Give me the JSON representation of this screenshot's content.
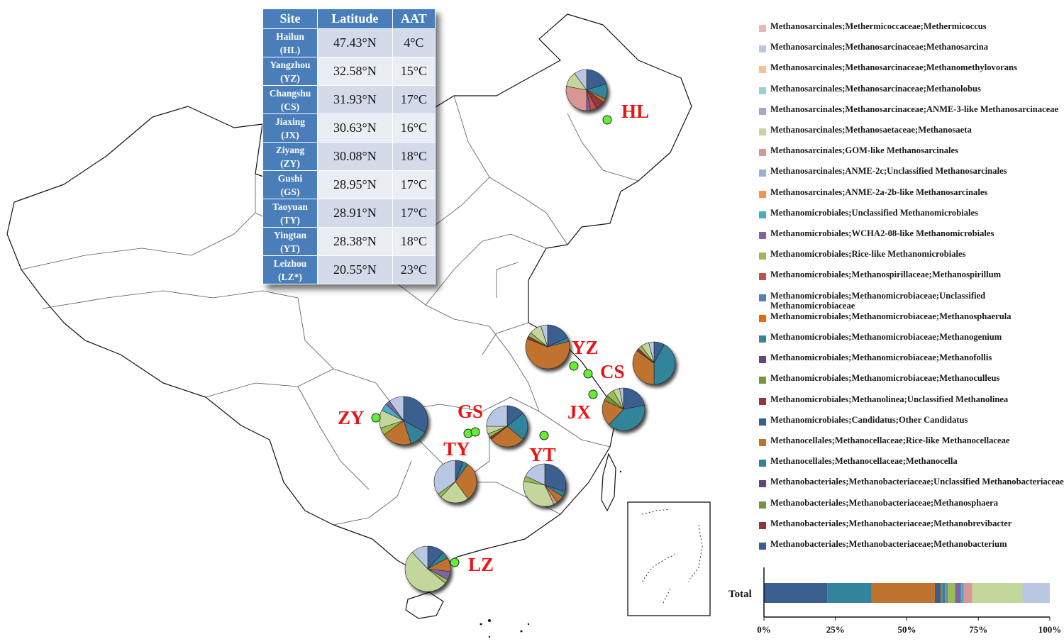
{
  "table": {
    "headers": [
      "Site",
      "Latitude",
      "AAT"
    ],
    "rows": [
      {
        "name": "Hailun",
        "code": "(HL)",
        "lat": "47.43°N",
        "aat": "4°C"
      },
      {
        "name": "Yangzhou",
        "code": "(YZ)",
        "lat": "32.58°N",
        "aat": "15°C"
      },
      {
        "name": "Changshu",
        "code": "(CS)",
        "lat": "31.93°N",
        "aat": "17°C"
      },
      {
        "name": "Jiaxing",
        "code": "(JX)",
        "lat": "30.63°N",
        "aat": "16°C"
      },
      {
        "name": "Ziyang",
        "code": "(ZY)",
        "lat": "30.08°N",
        "aat": "18°C"
      },
      {
        "name": "Gushi",
        "code": "(GS)",
        "lat": "28.95°N",
        "aat": "17°C"
      },
      {
        "name": "Taoyuan",
        "code": "(TY)",
        "lat": "28.91°N",
        "aat": "17°C"
      },
      {
        "name": "Yingtan",
        "code": "(YT)",
        "lat": "28.38°N",
        "aat": "18°C"
      },
      {
        "name": "Leizhou",
        "code": "(LZ*)",
        "lat": "20.55°N",
        "aat": "23°C"
      }
    ]
  },
  "site_labels": [
    "HL",
    "YZ",
    "CS",
    "JX",
    "ZY",
    "GS",
    "TY",
    "YT",
    "LZ"
  ],
  "legend": [
    {
      "label": "Methanosarcinales;Methermicoccaceae;Methermicoccus",
      "color": "#e6b9b8"
    },
    {
      "label": "Methanosarcinales;Methanosarcinaceae;Methanosarcina",
      "color": "#b9c7e3"
    },
    {
      "label": "Methanosarcinales;Methanosarcinaceae;Methanomethylovorans",
      "color": "#fabf8f"
    },
    {
      "label": "Methanosarcinales;Methanosarcinaceae;Methanolobus",
      "color": "#9dcfdb"
    },
    {
      "label": "Methanosarcinales;Methanosarcinaceae;ANME-3-like Methanosarcinaceae",
      "color": "#b3a2c7"
    },
    {
      "label": "Methanosarcinales;Methanosaetaceae;Methanosaeta",
      "color": "#c3d69b"
    },
    {
      "label": "Methanosarcinales;GOM-like Methanosarcinales",
      "color": "#d99694"
    },
    {
      "label": "Methanosarcinales;ANME-2c;Unclassified Methanosarcinales",
      "color": "#95b3d7"
    },
    {
      "label": "Methanosarcinales;ANME-2a-2b-like Methanosarcinales",
      "color": "#f79646"
    },
    {
      "label": "Methanomicrobiales;Unclassified Methanomicrobiales",
      "color": "#4bacc6"
    },
    {
      "label": "Methanomicrobiales;WCHA2-08-like Methanomicrobiales",
      "color": "#8064a2"
    },
    {
      "label": "Methanomicrobiales;Rice-like Methanomicrobiales",
      "color": "#9bbb59"
    },
    {
      "label": "Methanomicrobiales;Methanospirillaceae;Methanospirillum",
      "color": "#c0504d"
    },
    {
      "label": "Methanomicrobiales;Methanomicrobiaceae;Unclassified Methanomicrobiaceae",
      "color": "#4f81bd"
    },
    {
      "label": "Methanomicrobiales;Methanomicrobiaceae;Methanosphaerula",
      "color": "#e46c0a"
    },
    {
      "label": "Methanomicrobiales;Methanomicrobiaceae;Methanogenium",
      "color": "#31859c"
    },
    {
      "label": "Methanomicrobiales;Methanomicrobiaceae;Methanofollis",
      "color": "#5f497a"
    },
    {
      "label": "Methanomicrobiales;Methanomicrobiaceae;Methanoculleus",
      "color": "#77933c"
    },
    {
      "label": "Methanomicrobiales;Methanolinea;Unclassified Methanolinea",
      "color": "#953735"
    },
    {
      "label": "Methanomicrobiales;Candidatus;Other Candidatus",
      "color": "#376092"
    },
    {
      "label": "Methanocellales;Methanocellaceae;Rice-like Methanocellaceae",
      "color": "#c0732f"
    },
    {
      "label": "Methanocellales;Methanocellaceae;Methanocella",
      "color": "#31849b"
    },
    {
      "label": "Methanobacteriales;Methanobacteriaceae;Unclassified Methanobacteriaceae",
      "color": "#60497a"
    },
    {
      "label": "Methanobacteriales;Methanobacteriaceae;Methanosphaera",
      "color": "#76923c"
    },
    {
      "label": "Methanobacteriales;Methanobacteriaceae;Methanobrevibacter",
      "color": "#943634"
    },
    {
      "label": "Methanobacteriales;Methanobacteriaceae;Methanobacterium",
      "color": "#3a5f8f"
    }
  ],
  "total_bar": {
    "label": "Total",
    "ticks": [
      "0%",
      "25%",
      "50%",
      "75%",
      "100%"
    ],
    "segments": [
      {
        "taxon": "Methanobacterium",
        "color": "#3a5f8f",
        "value": 22
      },
      {
        "taxon": "Methanocella",
        "color": "#31849b",
        "value": 15.5
      },
      {
        "taxon": "Rice-like Methanocellaceae",
        "color": "#c0732f",
        "value": 22
      },
      {
        "taxon": "Other Candidatus",
        "color": "#376092",
        "value": 1.5
      },
      {
        "taxon": "Unclassified Methanolinea",
        "color": "#953735",
        "value": 0.5
      },
      {
        "taxon": "Methanoculleus",
        "color": "#77933c",
        "value": 0.5
      },
      {
        "taxon": "Methanogenium",
        "color": "#31859c",
        "value": 1
      },
      {
        "taxon": "Methanosphaerula",
        "color": "#e46c0a",
        "value": 0.5
      },
      {
        "taxon": "Unclassified Methanomicrobiaceae",
        "color": "#4f81bd",
        "value": 0.5
      },
      {
        "taxon": "Rice-like Methanomicrobiales",
        "color": "#9bbb59",
        "value": 2.5
      },
      {
        "taxon": "WCHA2-08-like Methanomicrobiales",
        "color": "#8064a2",
        "value": 2
      },
      {
        "taxon": "Unclassified Methanomicrobiales",
        "color": "#4bacc6",
        "value": 1
      },
      {
        "taxon": "GOM-like Methanosarcinales",
        "color": "#d99694",
        "value": 3
      },
      {
        "taxon": "Methanosaeta",
        "color": "#c3d69b",
        "value": 17.5
      },
      {
        "taxon": "Methanosarcina",
        "color": "#b9c7e3",
        "value": 9.5
      }
    ]
  },
  "pies": [
    {
      "site": "HL",
      "slices": [
        {
          "color": "#3a5f8f",
          "value": 20
        },
        {
          "color": "#31849b",
          "value": 12
        },
        {
          "color": "#c0732f",
          "value": 3
        },
        {
          "color": "#953735",
          "value": 7
        },
        {
          "color": "#c0504d",
          "value": 5
        },
        {
          "color": "#8064a2",
          "value": 3
        },
        {
          "color": "#d99694",
          "value": 28
        },
        {
          "color": "#c3d69b",
          "value": 12
        },
        {
          "color": "#b9c7e3",
          "value": 10
        }
      ]
    },
    {
      "site": "YZ",
      "slices": [
        {
          "color": "#3a5f8f",
          "value": 18
        },
        {
          "color": "#31849b",
          "value": 3
        },
        {
          "color": "#c0732f",
          "value": 60
        },
        {
          "color": "#953735",
          "value": 2
        },
        {
          "color": "#9bbb59",
          "value": 3
        },
        {
          "color": "#c3d69b",
          "value": 9
        },
        {
          "color": "#b9c7e3",
          "value": 5
        }
      ]
    },
    {
      "site": "CS",
      "slices": [
        {
          "color": "#3a5f8f",
          "value": 8
        },
        {
          "color": "#31849b",
          "value": 42
        },
        {
          "color": "#c0732f",
          "value": 35
        },
        {
          "color": "#953735",
          "value": 2
        },
        {
          "color": "#9bbb59",
          "value": 3
        },
        {
          "color": "#c3d69b",
          "value": 6
        },
        {
          "color": "#b9c7e3",
          "value": 4
        }
      ]
    },
    {
      "site": "JX",
      "slices": [
        {
          "color": "#3a5f8f",
          "value": 22
        },
        {
          "color": "#31849b",
          "value": 40
        },
        {
          "color": "#c0732f",
          "value": 20
        },
        {
          "color": "#77933c",
          "value": 4
        },
        {
          "color": "#9bbb59",
          "value": 6
        },
        {
          "color": "#c3d69b",
          "value": 5
        },
        {
          "color": "#b9c7e3",
          "value": 3
        }
      ]
    },
    {
      "site": "ZY",
      "slices": [
        {
          "color": "#3a5f8f",
          "value": 33
        },
        {
          "color": "#31849b",
          "value": 12
        },
        {
          "color": "#c0732f",
          "value": 20
        },
        {
          "color": "#9bbb59",
          "value": 5
        },
        {
          "color": "#c3d69b",
          "value": 12
        },
        {
          "color": "#4bacc6",
          "value": 5
        },
        {
          "color": "#8064a2",
          "value": 3
        },
        {
          "color": "#b9c7e3",
          "value": 10
        }
      ]
    },
    {
      "site": "GS",
      "slices": [
        {
          "color": "#3a5f8f",
          "value": 14
        },
        {
          "color": "#31849b",
          "value": 22
        },
        {
          "color": "#c0732f",
          "value": 28
        },
        {
          "color": "#953735",
          "value": 2
        },
        {
          "color": "#9bbb59",
          "value": 3
        },
        {
          "color": "#c3d69b",
          "value": 6
        },
        {
          "color": "#b9c7e3",
          "value": 25
        }
      ]
    },
    {
      "site": "TY",
      "slices": [
        {
          "color": "#3a5f8f",
          "value": 6
        },
        {
          "color": "#31849b",
          "value": 4
        },
        {
          "color": "#c0732f",
          "value": 30
        },
        {
          "color": "#c3d69b",
          "value": 22
        },
        {
          "color": "#9bbb59",
          "value": 3
        },
        {
          "color": "#b9c7e3",
          "value": 35
        }
      ]
    },
    {
      "site": "YT",
      "slices": [
        {
          "color": "#3a5f8f",
          "value": 30
        },
        {
          "color": "#31849b",
          "value": 4
        },
        {
          "color": "#c0732f",
          "value": 6
        },
        {
          "color": "#d99694",
          "value": 3
        },
        {
          "color": "#c3d69b",
          "value": 35
        },
        {
          "color": "#9bbb59",
          "value": 4
        },
        {
          "color": "#b9c7e3",
          "value": 18
        }
      ]
    },
    {
      "site": "LZ",
      "slices": [
        {
          "color": "#3a5f8f",
          "value": 12
        },
        {
          "color": "#31849b",
          "value": 5
        },
        {
          "color": "#c0732f",
          "value": 10
        },
        {
          "color": "#8064a2",
          "value": 6
        },
        {
          "color": "#9bbb59",
          "value": 3
        },
        {
          "color": "#c3d69b",
          "value": 52
        },
        {
          "color": "#b9c7e3",
          "value": 12
        }
      ]
    }
  ],
  "colors": {
    "site_marker": "#66ee33",
    "site_label": "#ee1111",
    "table_header": "#4a7ebb"
  }
}
